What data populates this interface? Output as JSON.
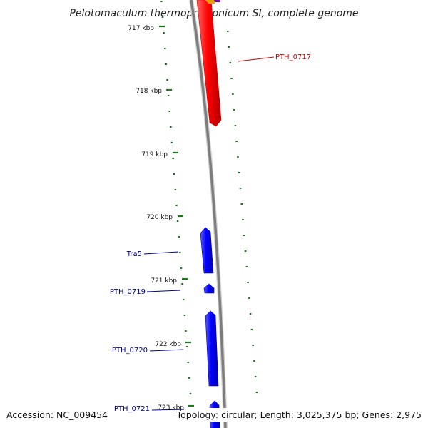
{
  "title": "Pelotomaculum thermopropionicum SI, complete genome",
  "footer": {
    "accession": "Accession: NC_009454",
    "summary": "Topology: circular; Length: 3,025,375 bp; Genes: 2,975"
  },
  "ticks": [
    {
      "label": "717 kbp"
    },
    {
      "label": "718 kbp"
    },
    {
      "label": "719 kbp"
    },
    {
      "label": "720 kbp"
    },
    {
      "label": "721 kbp"
    },
    {
      "label": "722 kbp"
    },
    {
      "label": "723 kbp"
    }
  ],
  "genes": [
    {
      "name": "PTH_0717",
      "strand": "forward",
      "color": "#cc0000"
    },
    {
      "name": "Tra5",
      "strand": "reverse",
      "color": "#000099"
    },
    {
      "name": "PTH_0719",
      "strand": "reverse",
      "color": "#000099"
    },
    {
      "name": "PTH_0720",
      "strand": "reverse",
      "color": "#000099"
    },
    {
      "name": "PTH_0721",
      "strand": "reverse",
      "color": "#000099"
    }
  ],
  "colors": {
    "forward_gene": "#ff0000",
    "reverse_gene": "#0000ff",
    "backbone": "#888888",
    "tick_marks": "#1a7a1a"
  }
}
